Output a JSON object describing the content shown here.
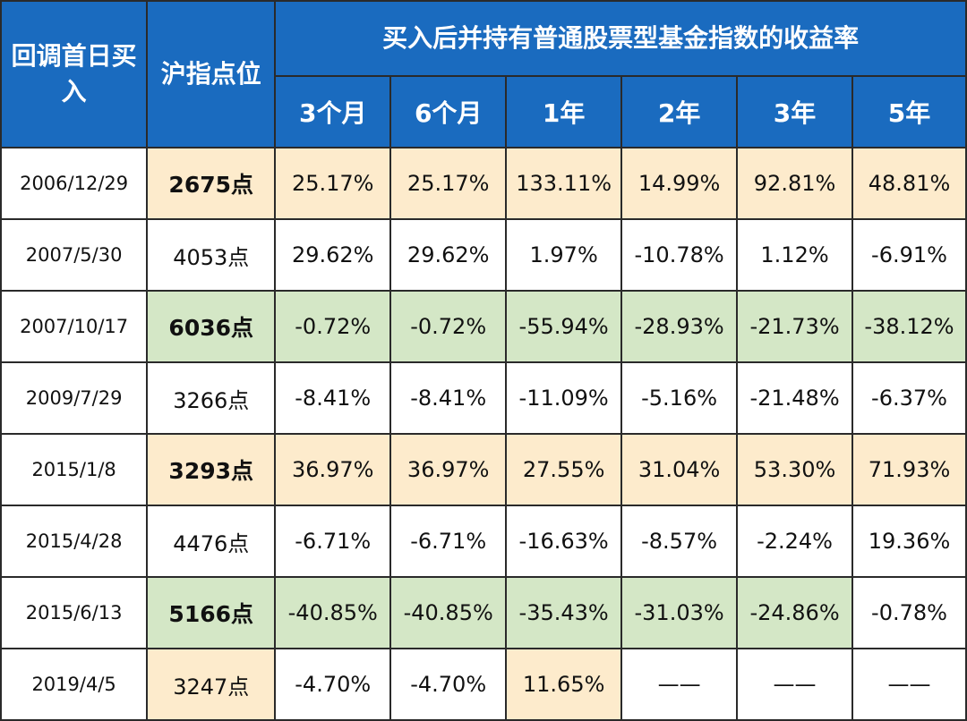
{
  "header": {
    "col_date": "回调首日买入",
    "col_index": "沪指点位",
    "group_title": "买入后并持有普通股票型基金指数的收益率",
    "periods": [
      "3个月",
      "6个月",
      "1年",
      "2年",
      "3年",
      "5年"
    ]
  },
  "colors": {
    "header_bg": "#1a6bbf",
    "highlight_orange": "#fdebcc",
    "highlight_green": "#d4e7c6",
    "grid": "#2a2a2a"
  },
  "rows": [
    {
      "date": "2006/12/29",
      "index": "2675点",
      "index_style": "orange-bold",
      "returns": [
        "25.17%",
        "25.17%",
        "133.11%",
        "14.99%",
        "92.81%",
        "48.81%"
      ],
      "highlights": [
        "orange",
        "orange",
        "orange",
        "orange",
        "orange",
        "orange"
      ]
    },
    {
      "date": "2007/5/30",
      "index": "4053点",
      "index_style": "plain",
      "returns": [
        "29.62%",
        "29.62%",
        "1.97%",
        "-10.78%",
        "1.12%",
        "-6.91%"
      ],
      "highlights": [
        "",
        "",
        "",
        "",
        "",
        ""
      ]
    },
    {
      "date": "2007/10/17",
      "index": "6036点",
      "index_style": "green-bold",
      "returns": [
        "-0.72%",
        "-0.72%",
        "-55.94%",
        "-28.93%",
        "-21.73%",
        "-38.12%"
      ],
      "highlights": [
        "green",
        "green",
        "green",
        "green",
        "green",
        "green"
      ]
    },
    {
      "date": "2009/7/29",
      "index": "3266点",
      "index_style": "plain",
      "returns": [
        "-8.41%",
        "-8.41%",
        "-11.09%",
        "-5.16%",
        "-21.48%",
        "-6.37%"
      ],
      "highlights": [
        "",
        "",
        "",
        "",
        "",
        ""
      ]
    },
    {
      "date": "2015/1/8",
      "index": "3293点",
      "index_style": "orange-bold",
      "returns": [
        "36.97%",
        "36.97%",
        "27.55%",
        "31.04%",
        "53.30%",
        "71.93%"
      ],
      "highlights": [
        "orange",
        "orange",
        "orange",
        "orange",
        "orange",
        "orange"
      ]
    },
    {
      "date": "2015/4/28",
      "index": "4476点",
      "index_style": "plain",
      "returns": [
        "-6.71%",
        "-6.71%",
        "-16.63%",
        "-8.57%",
        "-2.24%",
        "19.36%"
      ],
      "highlights": [
        "",
        "",
        "",
        "",
        "",
        ""
      ]
    },
    {
      "date": "2015/6/13",
      "index": "5166点",
      "index_style": "green-bold",
      "returns": [
        "-40.85%",
        "-40.85%",
        "-35.43%",
        "-31.03%",
        "-24.86%",
        "-0.78%"
      ],
      "highlights": [
        "green",
        "green",
        "green",
        "green",
        "green",
        ""
      ]
    },
    {
      "date": "2019/4/5",
      "index": "3247点",
      "index_style": "orange",
      "returns": [
        "-4.70%",
        "-4.70%",
        "11.65%",
        "——",
        "——",
        "——"
      ],
      "highlights": [
        "",
        "",
        "orange",
        "",
        "",
        ""
      ]
    }
  ]
}
